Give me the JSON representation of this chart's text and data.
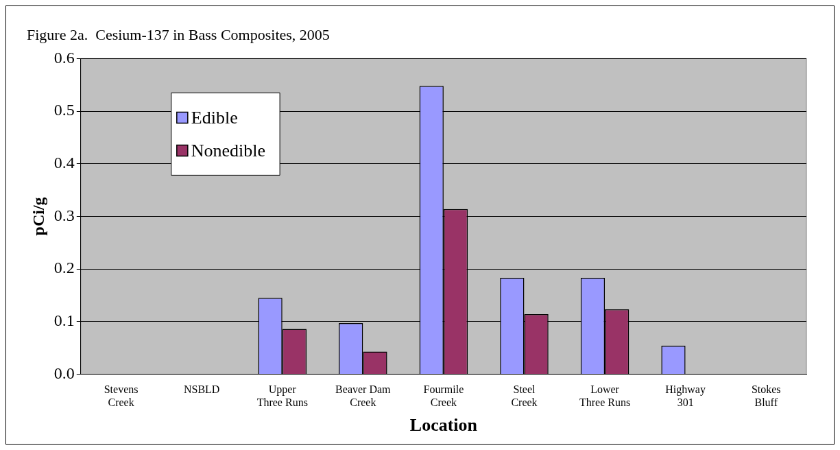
{
  "chart_data": {
    "type": "bar",
    "title": "Figure 2a.  Cesium-137 in Bass Composites, 2005",
    "xlabel": "Location",
    "ylabel": "pCi/g",
    "categories": [
      "Stevens Creek",
      "NSBLD",
      "Upper Three Runs",
      "Beaver Dam Creek",
      "Fourmile Creek",
      "Steel Creek",
      "Lower Three Runs",
      "Highway 301",
      "Stokes Bluff"
    ],
    "series": [
      {
        "name": "Edible",
        "color": "#9999ff",
        "values": [
          null,
          null,
          0.145,
          0.097,
          0.548,
          0.183,
          0.183,
          0.054,
          null
        ]
      },
      {
        "name": "Nonedible",
        "color": "#993366",
        "values": [
          null,
          null,
          0.086,
          0.043,
          0.314,
          0.114,
          0.123,
          null,
          null
        ]
      }
    ],
    "ylim": [
      0,
      0.6
    ],
    "yticks": [
      {
        "value": 0,
        "label": "0.0"
      },
      0.1,
      0.2,
      0.3,
      0.4,
      0.5,
      0.6
    ],
    "grid": "y",
    "legend": "top left"
  }
}
